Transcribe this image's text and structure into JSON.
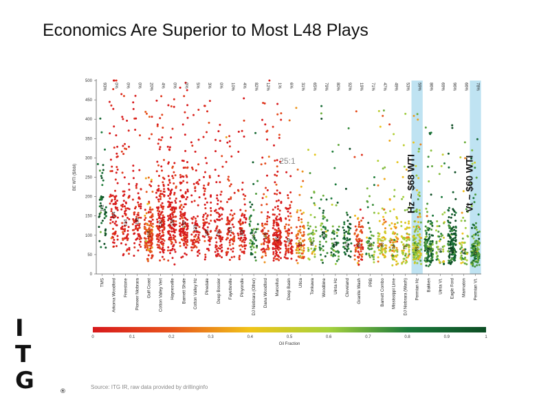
{
  "slide": {
    "title": "Economics Are Superior to Most L48 Plays",
    "source": "Source: ITG IR, raw data provided by drillinginfo",
    "logo_letters": [
      "I",
      "T",
      "G"
    ],
    "logo_mark": "®"
  },
  "chart_data": {
    "type": "scatter",
    "ylabel": "BE WTI ($/bbl)",
    "ylim": [
      0,
      500
    ],
    "yticks": [
      0,
      50,
      100,
      150,
      200,
      250,
      300,
      350,
      400,
      450,
      500
    ],
    "categories": [
      "TMS",
      "Arkoma Woodford",
      "Freestone",
      "Pioneer Niobrara",
      "Gulf Coast",
      "Cotton Valley Vert",
      "Haynesville",
      "Barnett Shale",
      "Cotton Valley Hz",
      "Pinedale",
      "Deep Bossier",
      "Fayetteville",
      "Pinyondle",
      "DJ Niobrara (Other)",
      "Dana Woodford",
      "Marcellus",
      "Deep Basin",
      "Utica",
      "Tonkawa",
      "Woodbine",
      "Uinta Hz",
      "Cleveland",
      "Granite Wash",
      "PRB",
      "Barnett Combo",
      "Mississippi Lime",
      "DJ Niobrara (Wash)",
      "Permian Hz",
      "Bakken",
      "Uinta Vt.",
      "Eagle Ford",
      "Marmaton",
      "Permian Vt."
    ],
    "oil_fraction_labels": [
      "93%",
      "0%",
      "0%",
      "0%",
      "20%",
      "4%",
      "0%",
      "0%",
      "5%",
      "3%",
      "0%",
      "10%",
      "4%",
      "82%",
      "12%",
      "1%",
      "6%",
      "31%",
      "65%",
      "79%",
      "80%",
      "92%",
      "19%",
      "71%",
      "47%",
      "49%",
      "53%",
      "59%",
      "86%",
      "69%",
      "96%",
      "66%",
      "78%"
    ],
    "median_labels": [
      "172",
      "154",
      "134",
      "138",
      "105",
      "132",
      "134",
      "130",
      "120",
      "108",
      "107",
      "115",
      "108",
      "101",
      "100",
      "95",
      "92",
      "82",
      "83",
      "104",
      "82",
      "80",
      "80",
      "80",
      "80",
      "74",
      "73",
      "69",
      "68",
      "66",
      "65",
      "62",
      "60"
    ],
    "median_values": [
      172,
      154,
      134,
      138,
      105,
      132,
      134,
      130,
      120,
      108,
      107,
      115,
      108,
      101,
      100,
      95,
      92,
      82,
      83,
      104,
      82,
      80,
      80,
      80,
      80,
      74,
      73,
      69,
      68,
      66,
      65,
      62,
      60
    ],
    "oil_fraction": [
      0.93,
      0,
      0,
      0,
      0.2,
      0.04,
      0,
      0,
      0.05,
      0.03,
      0,
      0.1,
      0.04,
      0.82,
      0.12,
      0.01,
      0.06,
      0.31,
      0.65,
      0.79,
      0.8,
      0.92,
      0.19,
      0.71,
      0.47,
      0.49,
      0.53,
      0.59,
      0.86,
      0.69,
      0.96,
      0.66,
      0.78
    ],
    "highlighted": [
      "Permian Hz",
      "Permian Vt."
    ],
    "annotations": [
      {
        "text": "Hz ~ $68 WTI",
        "category": "Permian Hz"
      },
      {
        "text": "Vt ~ $60 WTI",
        "category": "Permian Vt."
      },
      {
        "text": "25:1",
        "y": 285
      }
    ],
    "colorbar": {
      "label": "Oil Fraction",
      "ticks": [
        "0",
        "0.1",
        "0.2",
        "0.3",
        "0.4",
        "0.5",
        "0.6",
        "0.7",
        "0.8",
        "0.9",
        "1"
      ],
      "colors": [
        "#d7191c",
        "#e8541c",
        "#f0c419",
        "#a6d23e",
        "#1b7a3c",
        "#0d4d24"
      ]
    },
    "grid": false,
    "legend": "colorbar-bottom"
  }
}
